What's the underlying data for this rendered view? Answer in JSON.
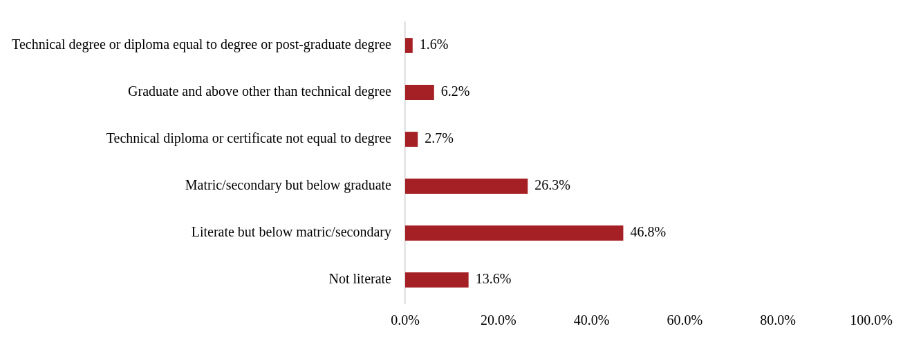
{
  "chart_data": {
    "type": "bar",
    "orientation": "horizontal",
    "categories": [
      "Technical degree or diploma equal to degree or post-graduate degree",
      "Graduate and above other than technical degree",
      "Technical diploma or certificate not equal to degree",
      "Matric/secondary but below graduate",
      "Literate but below matric/secondary",
      "Not literate"
    ],
    "values": [
      1.6,
      6.2,
      2.7,
      26.3,
      46.8,
      13.6
    ],
    "value_labels": [
      "1.6%",
      "6.2%",
      "2.7%",
      "26.3%",
      "46.8%",
      "13.6%"
    ],
    "color": "#a52024",
    "xlim": [
      0,
      100
    ],
    "xticks": [
      {
        "value": 0,
        "label": "0.0%"
      },
      {
        "value": 20,
        "label": "20.0%"
      },
      {
        "value": 40,
        "label": "40.0%"
      },
      {
        "value": 60,
        "label": "60.0%"
      },
      {
        "value": 80,
        "label": "80.0%"
      },
      {
        "value": 100,
        "label": "100.0%"
      }
    ],
    "grid": false,
    "legend": false
  }
}
